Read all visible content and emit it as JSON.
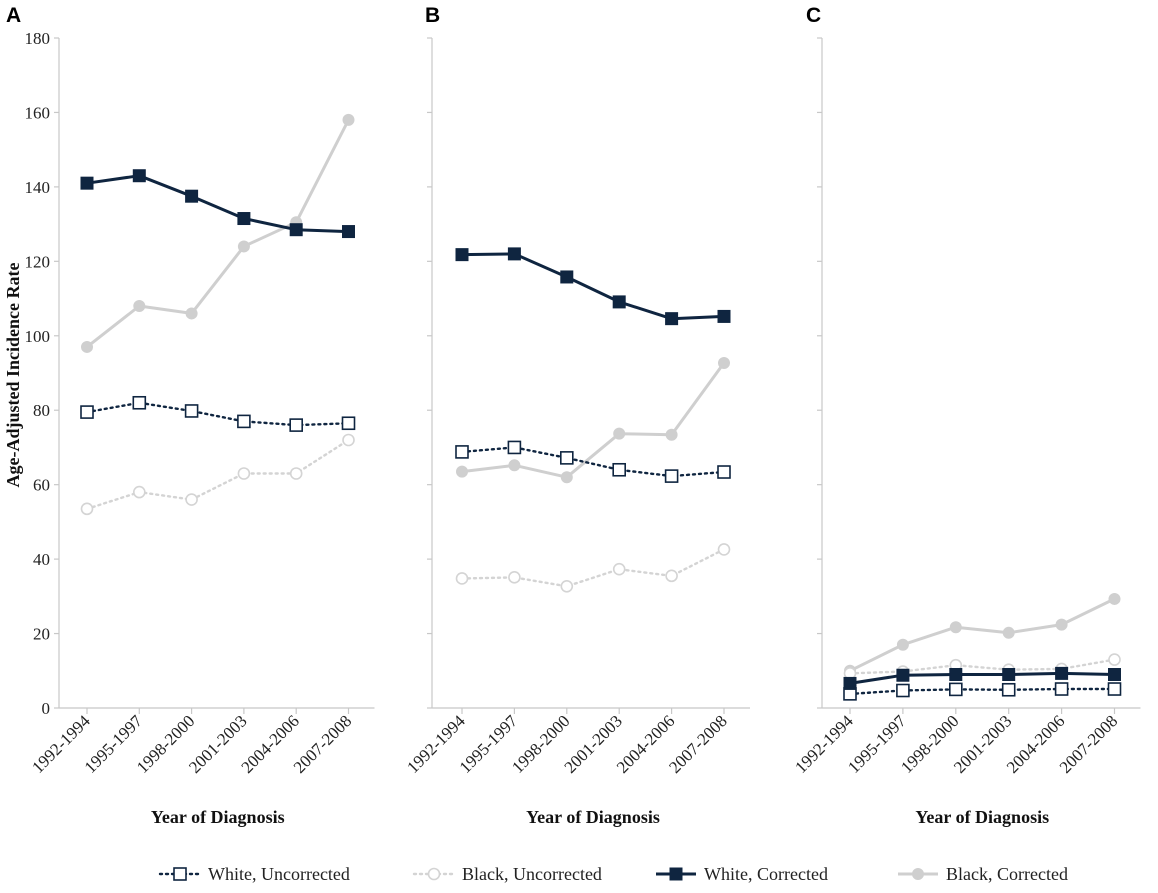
{
  "chart_data": {
    "type": "line",
    "ylabel": "Age-Adjusted Incidence Rate",
    "ylim": [
      0,
      180
    ],
    "yticks": [
      "0",
      "20",
      "40",
      "60",
      "80",
      "100",
      "120",
      "140",
      "160",
      "180"
    ],
    "categories": [
      "1992-1994",
      "1995-1997",
      "1998-2000",
      "2001-2003",
      "2004-2006",
      "2007-2008"
    ],
    "series_styles": [
      {
        "name": "White, Uncorrected",
        "color": "#0f2540",
        "dash": "dotted",
        "marker": "square-open"
      },
      {
        "name": "Black, Uncorrected",
        "color": "#d4d4d4",
        "dash": "dotted",
        "marker": "circle-open"
      },
      {
        "name": "White, Corrected",
        "color": "#0f2540",
        "dash": "solid",
        "marker": "square-filled"
      },
      {
        "name": "Black, Corrected",
        "color": "#cfcfcf",
        "dash": "solid",
        "marker": "circle-filled"
      }
    ],
    "panels": [
      {
        "label": "A",
        "xlabel": "Year of Diagnosis",
        "series": [
          {
            "name": "White, Uncorrected",
            "values": [
              79.5,
              82,
              79.8,
              77,
              76,
              76.5
            ]
          },
          {
            "name": "Black, Uncorrected",
            "values": [
              53.5,
              58,
              56,
              63,
              63,
              72
            ]
          },
          {
            "name": "White, Corrected",
            "values": [
              141,
              143,
              137.5,
              131.5,
              128.5,
              128
            ]
          },
          {
            "name": "Black, Corrected",
            "values": [
              97,
              108,
              106,
              124,
              130.5,
              158
            ]
          }
        ]
      },
      {
        "label": "B",
        "xlabel": "Year of Diagnosis",
        "series": [
          {
            "name": "White, Uncorrected",
            "values": [
              68.8,
              70,
              67.2,
              64,
              62.3,
              63.4
            ]
          },
          {
            "name": "Black, Uncorrected",
            "values": [
              34.8,
              35.1,
              32.7,
              37.3,
              35.5,
              42.6
            ]
          },
          {
            "name": "White, Corrected",
            "values": [
              121.8,
              122,
              115.8,
              109.1,
              104.6,
              105.2
            ]
          },
          {
            "name": "Black, Corrected",
            "values": [
              63.5,
              65.2,
              62,
              73.7,
              73.4,
              92.7
            ]
          }
        ]
      },
      {
        "label": "C",
        "xlabel": "Year of Diagnosis",
        "series": [
          {
            "name": "White, Uncorrected",
            "values": [
              3.8,
              4.7,
              5,
              4.9,
              5.1,
              5.1
            ]
          },
          {
            "name": "Black, Uncorrected",
            "values": [
              9.3,
              9.8,
              11.5,
              10.3,
              10.5,
              13
            ]
          },
          {
            "name": "White, Corrected",
            "values": [
              6.6,
              8.8,
              9,
              9,
              9.3,
              9
            ]
          },
          {
            "name": "Black, Corrected",
            "values": [
              10,
              17,
              21.7,
              20.2,
              22.4,
              29.3
            ]
          }
        ]
      }
    ]
  }
}
